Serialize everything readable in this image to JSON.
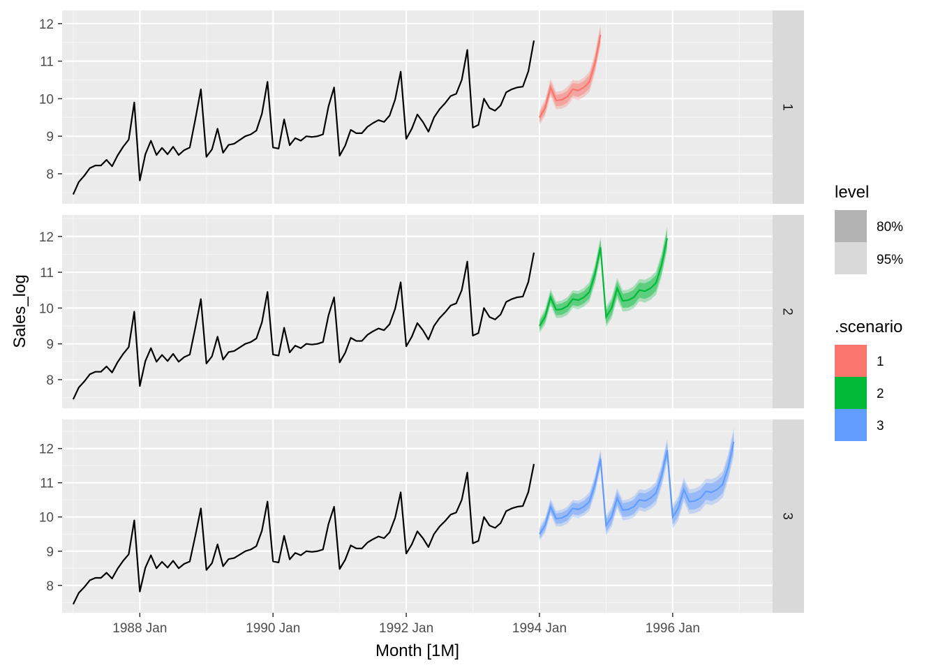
{
  "chart_data": {
    "type": "line",
    "xlabel": "Month [1M]",
    "ylabel": "Sales_log",
    "x_ticks": [
      "1988 Jan",
      "1990 Jan",
      "1992 Jan",
      "1994 Jan",
      "1996 Jan"
    ],
    "y_ticks": [
      8,
      9,
      10,
      11,
      12
    ],
    "x_range": [
      "1986 Nov",
      "1997 Jul"
    ],
    "facet_ylims": [
      [
        7.2,
        12.35
      ],
      [
        7.2,
        12.6
      ],
      [
        7.2,
        12.85
      ]
    ],
    "grid": true,
    "legend_position": "right",
    "history": {
      "start": "1987 Jan",
      "end": "1993 Dec",
      "color": "#000000",
      "values": [
        7.45,
        7.78,
        7.95,
        8.15,
        8.22,
        8.22,
        8.37,
        8.2,
        8.49,
        8.72,
        8.91,
        9.9,
        7.82,
        8.52,
        8.88,
        8.5,
        8.69,
        8.52,
        8.72,
        8.5,
        8.63,
        8.7,
        9.45,
        10.25,
        8.45,
        8.65,
        9.2,
        8.56,
        8.77,
        8.8,
        8.9,
        9.0,
        9.05,
        9.15,
        9.6,
        10.45,
        8.7,
        8.67,
        9.45,
        8.76,
        8.95,
        8.88,
        9.0,
        8.98,
        9.0,
        9.05,
        9.8,
        10.3,
        8.48,
        8.75,
        9.17,
        9.08,
        9.08,
        9.25,
        9.35,
        9.43,
        9.38,
        9.55,
        9.98,
        10.72,
        8.93,
        9.2,
        9.58,
        9.38,
        9.12,
        9.5,
        9.72,
        9.88,
        10.07,
        10.13,
        10.5,
        11.3,
        9.23,
        9.3,
        10.0,
        9.75,
        9.68,
        9.82,
        10.17,
        10.25,
        10.3,
        10.32,
        10.73,
        11.55
      ]
    },
    "series": [
      {
        "name": "1",
        "color": "#F8766D",
        "forecast_start": "1994 Jan",
        "mean": [
          9.5,
          9.75,
          10.3,
          9.95,
          9.97,
          10.05,
          10.25,
          10.22,
          10.3,
          10.45,
          10.95,
          11.7
        ],
        "spread80": [
          0.13,
          0.14,
          0.15,
          0.15,
          0.16,
          0.16,
          0.17,
          0.17,
          0.17,
          0.18,
          0.18,
          0.19
        ],
        "spread95": [
          0.2,
          0.22,
          0.23,
          0.23,
          0.24,
          0.25,
          0.25,
          0.26,
          0.26,
          0.27,
          0.27,
          0.28
        ]
      },
      {
        "name": "2",
        "color": "#00BA38",
        "forecast_start": "1994 Jan",
        "mean": [
          9.5,
          9.75,
          10.3,
          9.95,
          9.97,
          10.05,
          10.25,
          10.22,
          10.3,
          10.45,
          10.95,
          11.7,
          9.75,
          10.0,
          10.55,
          10.2,
          10.22,
          10.3,
          10.5,
          10.47,
          10.55,
          10.7,
          11.2,
          11.95
        ],
        "spread80": [
          0.13,
          0.14,
          0.15,
          0.15,
          0.16,
          0.16,
          0.17,
          0.17,
          0.17,
          0.18,
          0.18,
          0.19,
          0.19,
          0.2,
          0.2,
          0.2,
          0.21,
          0.21,
          0.21,
          0.22,
          0.22,
          0.22,
          0.23,
          0.23
        ],
        "spread95": [
          0.2,
          0.22,
          0.23,
          0.23,
          0.24,
          0.25,
          0.25,
          0.26,
          0.26,
          0.27,
          0.27,
          0.28,
          0.28,
          0.29,
          0.29,
          0.3,
          0.3,
          0.31,
          0.31,
          0.32,
          0.32,
          0.33,
          0.33,
          0.34
        ]
      },
      {
        "name": "3",
        "color": "#619CFF",
        "forecast_start": "1994 Jan",
        "mean": [
          9.5,
          9.75,
          10.3,
          9.95,
          9.97,
          10.05,
          10.25,
          10.22,
          10.3,
          10.45,
          10.95,
          11.7,
          9.75,
          10.0,
          10.55,
          10.2,
          10.22,
          10.3,
          10.5,
          10.47,
          10.55,
          10.7,
          11.2,
          11.95,
          10.0,
          10.25,
          10.8,
          10.45,
          10.47,
          10.55,
          10.75,
          10.72,
          10.8,
          10.95,
          11.45,
          12.2
        ],
        "spread80": [
          0.13,
          0.14,
          0.15,
          0.15,
          0.16,
          0.16,
          0.17,
          0.17,
          0.17,
          0.18,
          0.18,
          0.19,
          0.19,
          0.2,
          0.2,
          0.2,
          0.21,
          0.21,
          0.21,
          0.22,
          0.22,
          0.22,
          0.23,
          0.23,
          0.23,
          0.24,
          0.24,
          0.24,
          0.25,
          0.25,
          0.25,
          0.26,
          0.26,
          0.26,
          0.27,
          0.27
        ],
        "spread95": [
          0.2,
          0.22,
          0.23,
          0.23,
          0.24,
          0.25,
          0.25,
          0.26,
          0.26,
          0.27,
          0.27,
          0.28,
          0.28,
          0.29,
          0.29,
          0.3,
          0.3,
          0.31,
          0.31,
          0.32,
          0.32,
          0.33,
          0.33,
          0.34,
          0.34,
          0.35,
          0.35,
          0.36,
          0.36,
          0.37,
          0.37,
          0.38,
          0.38,
          0.39,
          0.39,
          0.4
        ]
      }
    ],
    "legend": {
      "level": {
        "title": "level",
        "entries": [
          {
            "label": "80%",
            "color": "#b3b3b3"
          },
          {
            "label": "95%",
            "color": "#d9d9d9"
          }
        ]
      },
      "scenario": {
        "title": ".scenario",
        "entries": [
          {
            "label": "1",
            "color": "#F8766D"
          },
          {
            "label": "2",
            "color": "#00BA38"
          },
          {
            "label": "3",
            "color": "#619CFF"
          }
        ]
      }
    }
  }
}
